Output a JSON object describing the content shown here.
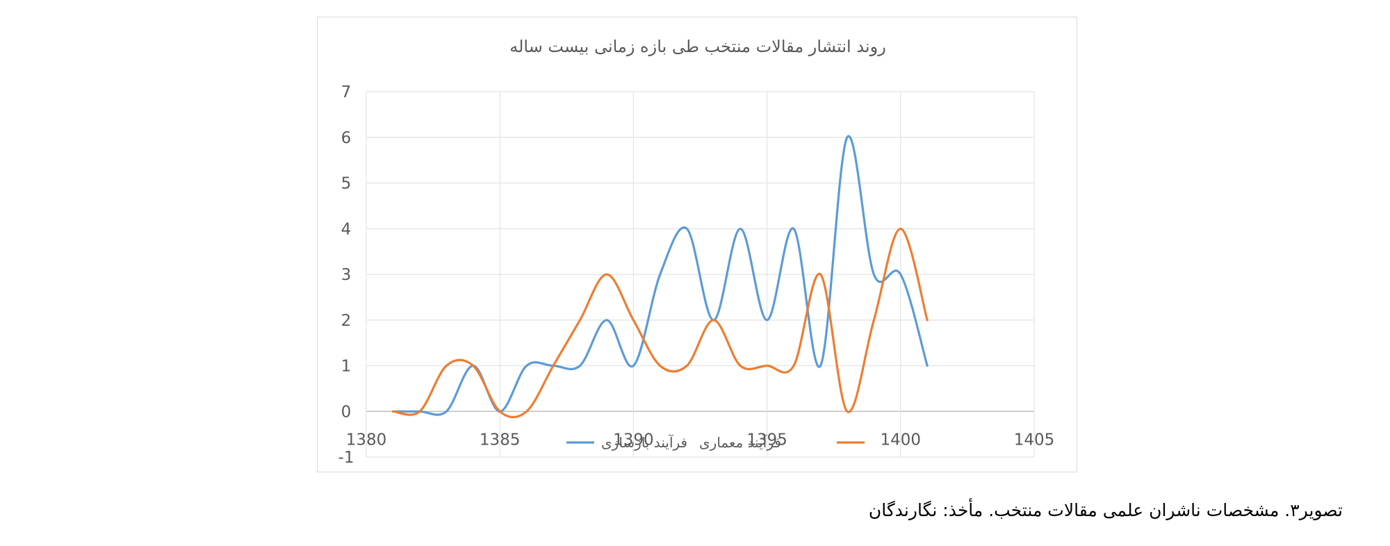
{
  "chart_data": {
    "type": "line",
    "title": "روند انتشار مقالات منتخب طی بازه زمانی بیست ساله",
    "xlabel": "",
    "ylabel": "",
    "xlim": [
      1380,
      1405
    ],
    "ylim": [
      -1,
      7
    ],
    "x_ticks": [
      1380,
      1385,
      1390,
      1395,
      1400,
      1405
    ],
    "y_ticks": [
      -1,
      0,
      1,
      2,
      3,
      4,
      5,
      6,
      7
    ],
    "grid": true,
    "smooth": true,
    "legend_position": "bottom",
    "x": [
      1381,
      1382,
      1383,
      1384,
      1385,
      1386,
      1387,
      1388,
      1389,
      1390,
      1391,
      1392,
      1393,
      1394,
      1395,
      1396,
      1397,
      1398,
      1399,
      1400,
      1401
    ],
    "series": [
      {
        "name": "فرآیند بازسازی",
        "color": "#5b9bd5",
        "values": [
          0,
          0,
          0,
          1,
          0,
          1,
          1,
          1,
          2,
          1,
          3,
          4,
          2,
          4,
          2,
          4,
          1,
          6,
          3,
          3,
          1
        ]
      },
      {
        "name": "فرآیند معماری",
        "color": "#ed7d31",
        "values": [
          0,
          0,
          1,
          1,
          0,
          0,
          1,
          2,
          3,
          2,
          1,
          1,
          2,
          1,
          1,
          1,
          3,
          0,
          2,
          4,
          2
        ]
      }
    ]
  },
  "caption": "تصویر۳. مشخصات ناشران علمی مقالات منتخب. مأخذ: نگارندگان"
}
